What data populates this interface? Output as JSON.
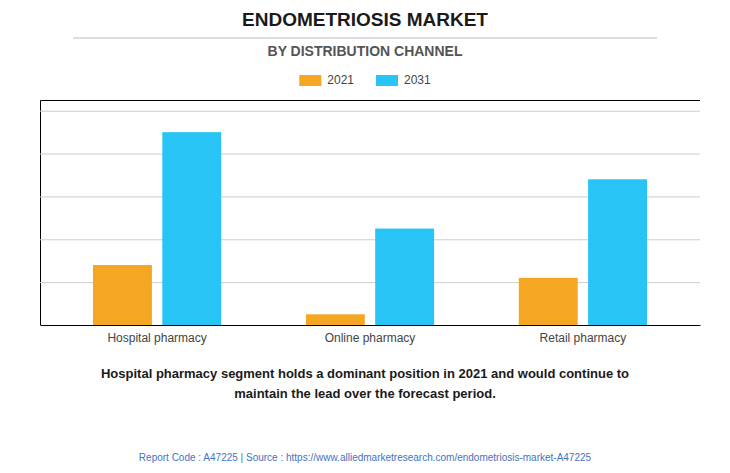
{
  "chart_data": {
    "type": "bar",
    "title": "ENDOMETRIOSIS MARKET",
    "subtitle": "BY DISTRIBUTION CHANNEL",
    "categories": [
      "Hospital pharmacy",
      "Online pharmacy",
      "Retail pharmacy"
    ],
    "series": [
      {
        "name": "2021",
        "color": "#F5A623",
        "values": [
          28,
          5,
          22
        ]
      },
      {
        "name": "2031",
        "color": "#29C4F6",
        "values": [
          90,
          45,
          68
        ]
      }
    ],
    "ylim": [
      0,
      105
    ],
    "yticks": [
      0,
      20,
      40,
      60,
      80,
      100
    ],
    "grid": true,
    "legend": "top",
    "tick_labels": "x",
    "annotations": [
      "Hospital pharmacy segment holds a dominant position in 2021 and would continue to\nmaintain the lead over the forecast period.",
      "Report Code : A47225  |  Source : https://www.alliedmarketresearch.com/endometriosis-market-A47225"
    ]
  }
}
